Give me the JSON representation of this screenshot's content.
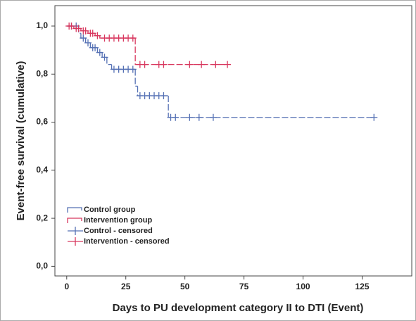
{
  "chart_data": {
    "type": "kaplan-meier",
    "x_label": "Days to PU development category II to DTI (Event)",
    "y_label": "Event-free survival (cumulative)",
    "xlim": [
      -5,
      146
    ],
    "ylim": [
      -0.04,
      1.085
    ],
    "xticks": [
      0,
      25,
      50,
      75,
      100,
      125
    ],
    "yticks": [
      {
        "value": 0,
        "label": "0,0"
      },
      {
        "value": 0.2,
        "label": "0,2"
      },
      {
        "value": 0.4,
        "label": "0,4"
      },
      {
        "value": 0.6,
        "label": "0,6"
      },
      {
        "value": 0.8,
        "label": "0,8"
      },
      {
        "value": 1,
        "label": "1,0"
      }
    ],
    "series": [
      {
        "name": "Control group",
        "kind": "step",
        "color": "#5470b4",
        "x": [
          0,
          5,
          6,
          8,
          10,
          13,
          15,
          17,
          19,
          29,
          30,
          43,
          130
        ],
        "values": [
          1,
          0.97,
          0.95,
          0.93,
          0.91,
          0.89,
          0.87,
          0.84,
          0.82,
          0.75,
          0.71,
          0.62,
          0.62
        ]
      },
      {
        "name": "Intervention group",
        "kind": "step",
        "color": "#d8375e",
        "x": [
          0,
          3,
          6,
          9,
          12,
          14,
          29,
          68
        ],
        "values": [
          1,
          0.99,
          0.98,
          0.97,
          0.96,
          0.95,
          0.84,
          0.84
        ]
      },
      {
        "name": "Control - censored",
        "kind": "censored",
        "color": "#5470b4",
        "x": [
          2,
          4,
          7,
          9,
          11,
          12,
          14,
          16,
          20,
          22,
          24,
          26,
          28,
          31,
          33,
          35,
          37,
          39,
          41,
          44,
          46,
          52,
          56,
          62,
          130
        ],
        "values": [
          1,
          1,
          0.95,
          0.93,
          0.91,
          0.91,
          0.89,
          0.87,
          0.82,
          0.82,
          0.82,
          0.82,
          0.82,
          0.71,
          0.71,
          0.71,
          0.71,
          0.71,
          0.71,
          0.62,
          0.62,
          0.62,
          0.62,
          0.62,
          0.62
        ]
      },
      {
        "name": "Intervention - censored",
        "kind": "censored",
        "color": "#d8375e",
        "x": [
          1,
          2,
          4,
          5,
          7,
          8,
          10,
          11,
          13,
          16,
          18,
          20,
          22,
          24,
          26,
          28,
          31,
          33,
          39,
          41,
          52,
          57,
          63,
          68
        ],
        "values": [
          1,
          1,
          0.99,
          0.99,
          0.98,
          0.98,
          0.97,
          0.97,
          0.96,
          0.95,
          0.95,
          0.95,
          0.95,
          0.95,
          0.95,
          0.95,
          0.84,
          0.84,
          0.84,
          0.84,
          0.84,
          0.84,
          0.84,
          0.84
        ]
      }
    ]
  }
}
